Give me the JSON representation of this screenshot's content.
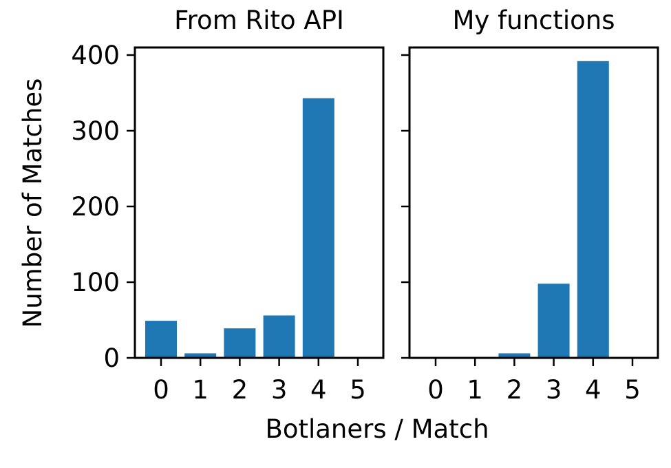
{
  "chart_data": {
    "type": "bar",
    "xlabel": "Botlaners / Match",
    "ylabel": "Number of Matches",
    "ylim": [
      0,
      410
    ],
    "yticks": [
      0,
      100,
      200,
      300,
      400
    ],
    "bar_color": "#1f77b4",
    "grid": false,
    "shared_y": true,
    "panels": [
      {
        "title": "From Rito API",
        "categories": [
          "0",
          "1",
          "2",
          "3",
          "4",
          "5"
        ],
        "values": [
          49,
          6,
          39,
          56,
          343,
          1
        ]
      },
      {
        "title": "My functions",
        "categories": [
          "0",
          "1",
          "2",
          "3",
          "4",
          "5"
        ],
        "values": [
          0,
          0,
          6,
          98,
          392,
          0
        ]
      }
    ]
  }
}
